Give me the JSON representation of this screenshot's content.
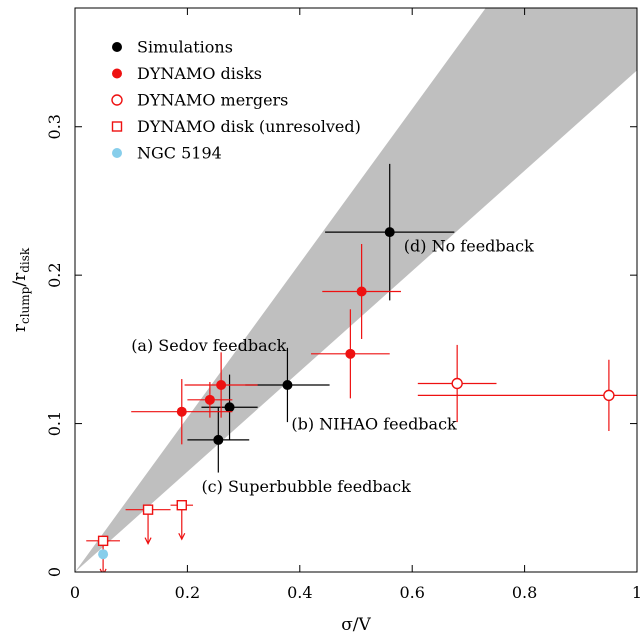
{
  "chart_data": {
    "type": "scatter",
    "title": "",
    "xlabel": "σ/V",
    "ylabel": "r",
    "ylabel_sub": "clump",
    "ylabel_mid": "/r",
    "ylabel_sub2": "disk",
    "xlim": [
      0,
      1
    ],
    "ylim": [
      0,
      0.38
    ],
    "x_ticks": [
      "0",
      "0.2",
      "0.4",
      "0.6",
      "0.8",
      "1"
    ],
    "x_tick_values": [
      0,
      0.2,
      0.4,
      0.6,
      0.8,
      1.0
    ],
    "y_ticks": [
      "0",
      "0.1",
      "0.2",
      "0.3"
    ],
    "y_tick_values": [
      0,
      0.1,
      0.2,
      0.3
    ],
    "grid": false,
    "legend_position": "top-left",
    "shaded_band": {
      "color": "#bfbfbf",
      "lower_slope": 0.338,
      "upper_slope": 0.52
    },
    "colors": {
      "black": "#000000",
      "red": "#ee1111",
      "lightblue": "#87ceeb",
      "band": "#bfbfbf"
    },
    "legend": [
      {
        "label": "Simulations",
        "marker": "filled-circle",
        "color": "#000000"
      },
      {
        "label": "DYNAMO disks",
        "marker": "filled-circle",
        "color": "#ee1111"
      },
      {
        "label": "DYNAMO mergers",
        "marker": "open-circle",
        "color": "#ee1111"
      },
      {
        "label": "DYNAMO disk (unresolved)",
        "marker": "open-square",
        "color": "#ee1111"
      },
      {
        "label": "NGC 5194",
        "marker": "filled-circle",
        "color": "#87ceeb"
      }
    ],
    "series": [
      {
        "name": "Simulations",
        "marker": "filled-circle",
        "color": "#000000",
        "points": [
          {
            "x": 0.255,
            "y": 0.089,
            "xerr": 0.055,
            "yerr": 0.022
          },
          {
            "x": 0.275,
            "y": 0.111,
            "xerr": 0.05,
            "yerr": 0.022
          },
          {
            "x": 0.378,
            "y": 0.126,
            "xerr": 0.075,
            "yerr": 0.025
          },
          {
            "x": 0.56,
            "y": 0.229,
            "xerr": 0.115,
            "yerr": 0.046
          }
        ]
      },
      {
        "name": "DYNAMO disks",
        "marker": "filled-circle",
        "color": "#ee1111",
        "points": [
          {
            "x": 0.19,
            "y": 0.108,
            "xerr": 0.09,
            "yerr": 0.022
          },
          {
            "x": 0.24,
            "y": 0.116,
            "xerr": 0.04,
            "yerr": 0.012
          },
          {
            "x": 0.26,
            "y": 0.126,
            "xerr": 0.065,
            "yerr": 0.022
          },
          {
            "x": 0.49,
            "y": 0.147,
            "xerr": 0.07,
            "yerr": 0.03
          },
          {
            "x": 0.51,
            "y": 0.189,
            "xerr": 0.07,
            "yerr": 0.032
          }
        ]
      },
      {
        "name": "DYNAMO mergers",
        "marker": "open-circle",
        "color": "#ee1111",
        "points": [
          {
            "x": 0.68,
            "y": 0.127,
            "xerr": 0.07,
            "yerr": 0.026
          },
          {
            "x": 0.95,
            "y": 0.119,
            "xerr_lo": 0.34,
            "xerr_hi": 0.05,
            "yerr": 0.024
          }
        ]
      },
      {
        "name": "DYNAMO disk (unresolved)",
        "marker": "open-square",
        "color": "#ee1111",
        "points": [
          {
            "x": 0.05,
            "y": 0.021,
            "xerr": 0.03,
            "upper_limit": true
          },
          {
            "x": 0.13,
            "y": 0.042,
            "xerr": 0.04,
            "upper_limit": true
          },
          {
            "x": 0.19,
            "y": 0.045,
            "xerr": 0.02,
            "upper_limit": true
          }
        ]
      },
      {
        "name": "NGC 5194",
        "marker": "filled-circle",
        "color": "#87ceeb",
        "points": [
          {
            "x": 0.05,
            "y": 0.012
          }
        ]
      }
    ],
    "annotations": [
      {
        "text": "(a) Sedov feedback",
        "x": 0.1,
        "y": 0.149
      },
      {
        "text": "(b) NIHAO feedback",
        "x": 0.385,
        "y": 0.096
      },
      {
        "text": "(c) Superbubble feedback",
        "x": 0.225,
        "y": 0.054
      },
      {
        "text": "(d) No feedback",
        "x": 0.585,
        "y": 0.216
      }
    ]
  }
}
